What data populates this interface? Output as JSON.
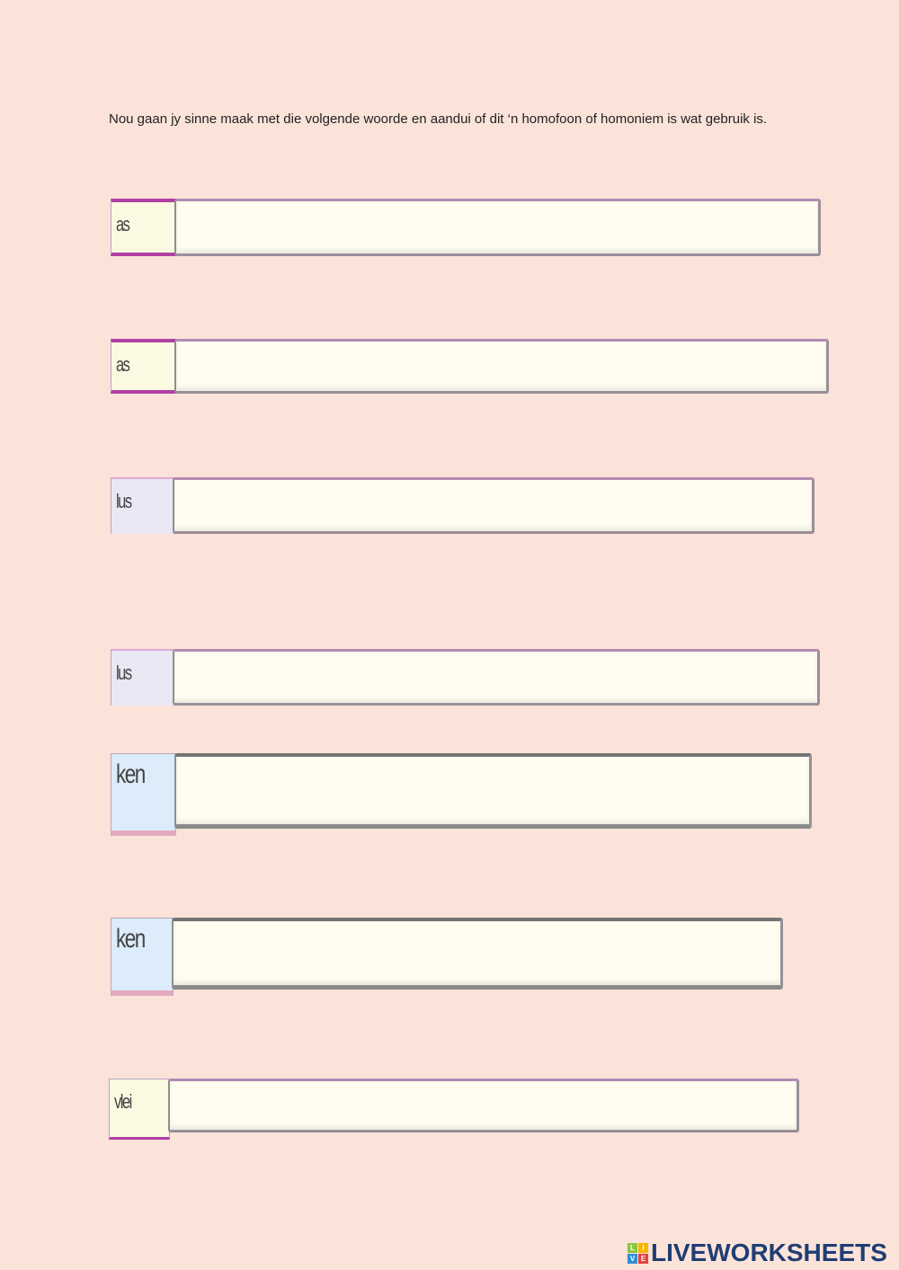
{
  "instruction": "Nou gaan jy sinne maak met die volgende woorde en aandui of dit ‘n homofoon of homoniem is wat gebruik is.",
  "rows": [
    {
      "label": "as",
      "value": ""
    },
    {
      "label": "as",
      "value": ""
    },
    {
      "label": "lus",
      "value": ""
    },
    {
      "label": "lus",
      "value": ""
    },
    {
      "label": "ken",
      "value": ""
    },
    {
      "label": "ken",
      "value": ""
    },
    {
      "label": "vlei",
      "value": ""
    }
  ],
  "logo": {
    "text": "LIVEWORKSHEETS",
    "cube_letters": [
      "L",
      "I",
      "V",
      "E"
    ],
    "cube_colors": [
      "#8cc63f",
      "#f7b500",
      "#2e8fd6",
      "#e8423f"
    ]
  },
  "colors": {
    "background": "#fbe3d9",
    "accent": "#b13fa6"
  }
}
